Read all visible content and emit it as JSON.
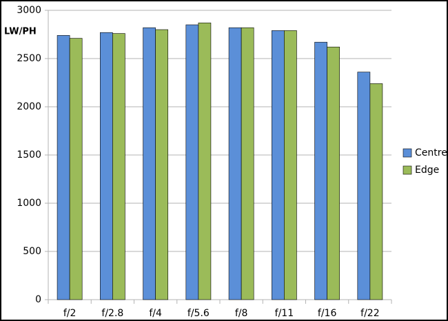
{
  "chart_data": {
    "type": "bar",
    "y_label": "LW/PH",
    "categories": [
      "f/2",
      "f/2.8",
      "f/4",
      "f/5.6",
      "f/8",
      "f/11",
      "f/16",
      "f/22"
    ],
    "series": [
      {
        "name": "Centre",
        "color": "#5b8fd8",
        "values": [
          2740,
          2770,
          2820,
          2850,
          2820,
          2790,
          2670,
          2360
        ]
      },
      {
        "name": "Edge",
        "color": "#9bbb59",
        "values": [
          2710,
          2760,
          2800,
          2870,
          2820,
          2790,
          2620,
          2240
        ]
      }
    ],
    "ylim": [
      0,
      3000
    ],
    "yticks": [
      0,
      500,
      1000,
      1500,
      2000,
      2500,
      3000
    ],
    "grid": true,
    "legend": "right"
  }
}
